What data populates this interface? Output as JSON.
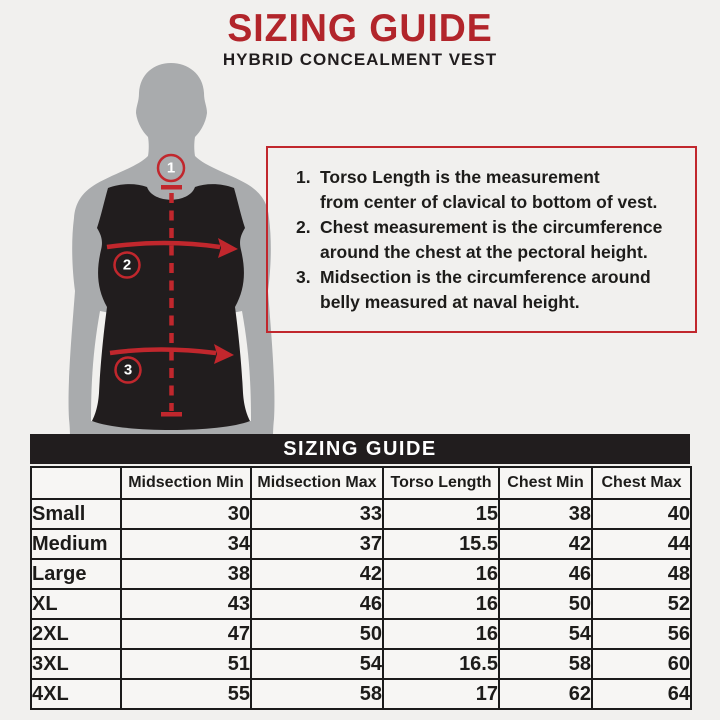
{
  "header": {
    "title": "SIZING GUIDE",
    "subtitle": "HYBRID CONCEALMENT VEST"
  },
  "figure": {
    "markers": [
      {
        "number": "1"
      },
      {
        "number": "2"
      },
      {
        "number": "3"
      }
    ]
  },
  "notes": {
    "items": [
      {
        "number": "1.",
        "lines": [
          "Torso Length is the measurement",
          "from center of clavical to bottom of vest."
        ]
      },
      {
        "number": "2.",
        "lines": [
          "Chest measurement is the circumference",
          "around the chest at the pectoral height."
        ]
      },
      {
        "number": "3.",
        "lines": [
          "Midsection is the circumference around",
          "belly measured at naval height."
        ]
      }
    ]
  },
  "table": {
    "title": "SIZING GUIDE",
    "columns": [
      "",
      "Midsection Min",
      "Midsection Max",
      "Torso Length",
      "Chest Min",
      "Chest Max"
    ],
    "rows": [
      {
        "size": "Small",
        "values": [
          "30",
          "33",
          "15",
          "38",
          "40"
        ]
      },
      {
        "size": "Medium",
        "values": [
          "34",
          "37",
          "15.5",
          "42",
          "44"
        ]
      },
      {
        "size": "Large",
        "values": [
          "38",
          "42",
          "16",
          "46",
          "48"
        ]
      },
      {
        "size": "XL",
        "values": [
          "43",
          "46",
          "16",
          "50",
          "52"
        ]
      },
      {
        "size": "2XL",
        "values": [
          "47",
          "50",
          "16",
          "54",
          "56"
        ]
      },
      {
        "size": "3XL",
        "values": [
          "51",
          "54",
          "16.5",
          "58",
          "60"
        ]
      },
      {
        "size": "4XL",
        "values": [
          "55",
          "58",
          "17",
          "62",
          "64"
        ]
      }
    ]
  },
  "colors": {
    "title_red": "#B2252B",
    "accent_red": "#C1272D",
    "ink_black": "#211D1E",
    "body_gray": "#A9ABAD",
    "page_bg": "#F1F0EE",
    "cell_bg": "#F7F6F4"
  }
}
